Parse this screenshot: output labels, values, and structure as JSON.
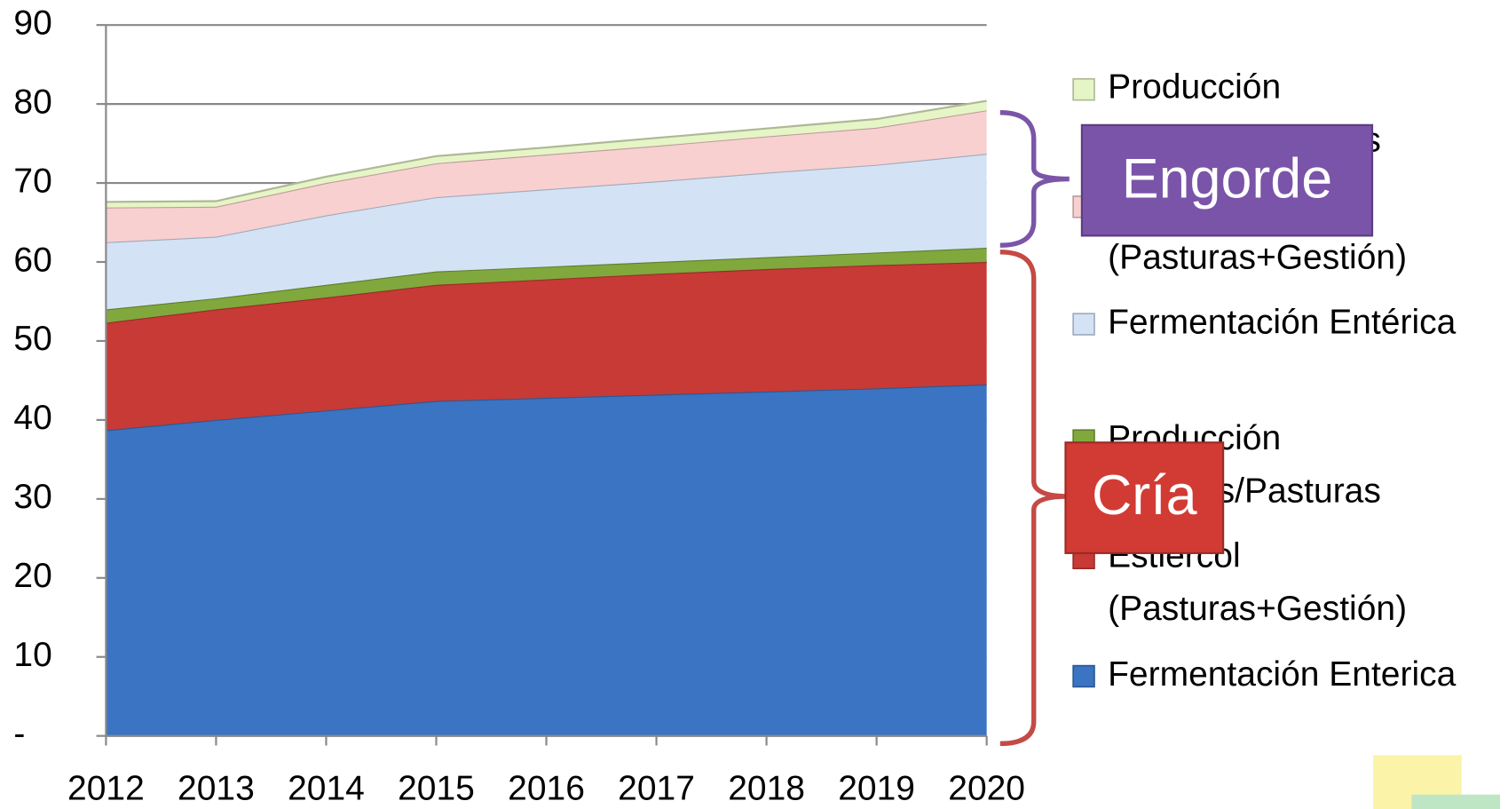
{
  "chart_data": {
    "type": "stacked_area",
    "categories": [
      "2012",
      "2013",
      "2014",
      "2015",
      "2016",
      "2017",
      "2018",
      "2019",
      "2020"
    ],
    "ylim": [
      0,
      90
    ],
    "yticks": [
      {
        "value": 0,
        "label": "-"
      },
      10,
      20,
      30,
      40,
      50,
      60,
      70,
      80,
      90
    ],
    "grid": true,
    "legend": "right",
    "series": [
      {
        "name": "Fermentación Enterica",
        "color": "#3a74c2",
        "values": [
          38.7,
          40.0,
          41.2,
          42.4,
          42.8,
          43.2,
          43.6,
          44.0,
          44.5
        ]
      },
      {
        "name": "Estiercol (Pasturas+Gestión)",
        "color": "#c83a36",
        "values": [
          13.6,
          14.0,
          14.3,
          14.7,
          15.0,
          15.3,
          15.5,
          15.6,
          15.5
        ]
      },
      {
        "name": "Producción Verdeos/Pasturas",
        "color": "#80a83c",
        "values": [
          1.7,
          1.4,
          1.6,
          1.7,
          1.6,
          1.5,
          1.5,
          1.6,
          1.8
        ]
      },
      {
        "name": "Fermentación Entérica",
        "color": "#d4e2f6",
        "values": [
          8.5,
          7.8,
          8.8,
          9.4,
          9.8,
          10.2,
          10.7,
          11.1,
          11.9
        ]
      },
      {
        "name": "Estiercol (Pasturas+Gestión)",
        "color": "#f8d0d0",
        "values": [
          4.4,
          3.8,
          4.1,
          4.3,
          4.4,
          4.5,
          4.6,
          4.7,
          5.5
        ]
      },
      {
        "name": "Producción Verdeos/Pasturas",
        "color": "#e6f5c6",
        "values": [
          0.7,
          0.7,
          0.8,
          0.9,
          0.9,
          1.0,
          1.0,
          1.1,
          1.2
        ]
      }
    ],
    "annotations": [
      "Engorde",
      "Cría"
    ]
  }
}
